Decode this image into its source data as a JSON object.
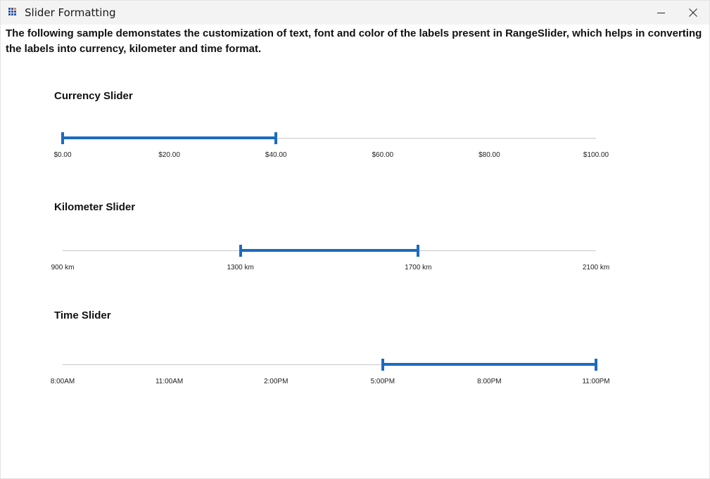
{
  "window": {
    "title": "Slider Formatting",
    "icon": "app-grid-icon"
  },
  "description": "The following sample demonstates the customization of text, font and color of the labels present in RangeSlider, which helps in converting the labels into currency, kilometer and time format.",
  "sliders": [
    {
      "title": "Currency Slider",
      "labels": [
        "$0.00",
        "$20.00",
        "$40.00",
        "$60.00",
        "$80.00",
        "$100.00"
      ],
      "range_start_fraction": 0.0,
      "range_end_fraction": 0.4,
      "accent_color": "#1a6bbf"
    },
    {
      "title": "Kilometer Slider",
      "labels": [
        "900 km",
        "1300 km",
        "1700 km",
        "2100 km"
      ],
      "range_start_fraction": 0.3333,
      "range_end_fraction": 0.6667,
      "accent_color": "#1a6bbf"
    },
    {
      "title": "Time Slider",
      "labels": [
        "8:00AM",
        "11:00AM",
        "2:00PM",
        "5:00PM",
        "8:00PM",
        "11:00PM"
      ],
      "range_start_fraction": 0.6,
      "range_end_fraction": 1.0,
      "accent_color": "#1a6bbf"
    }
  ]
}
